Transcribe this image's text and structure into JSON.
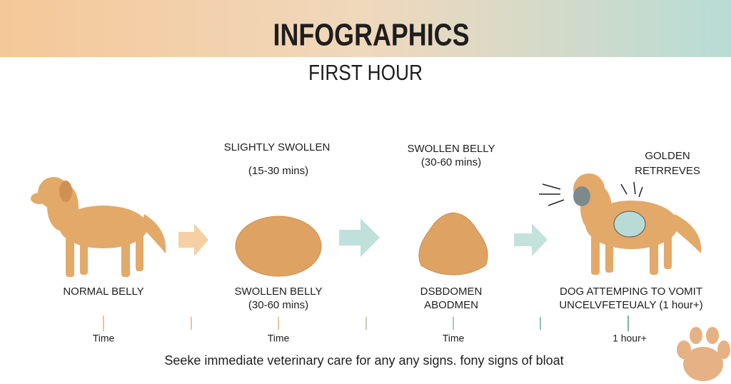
{
  "header": {
    "title": "INFOGRAPHICS",
    "subtitle": "FIRST HOUR"
  },
  "stages": [
    {
      "top": [],
      "label": [
        "NORMAL BELLY"
      ]
    },
    {
      "top": [
        "SLIGHTLY SWOLLEN",
        "(15-30 mins)"
      ],
      "label": [
        "SWOLLEN BELLY",
        "(30-60 mins)"
      ]
    },
    {
      "top": [
        "SWOLLEN BELLY",
        "(30-60 mins)"
      ],
      "label": [
        "DSBDOMEN",
        "ABODMEN"
      ]
    },
    {
      "top": [
        "GOLDEN",
        "RETRREVES"
      ],
      "label": [
        "DOG ATTEMPING TO VOMIT",
        "UNCELVFETEUALY (1 hour+)"
      ]
    }
  ],
  "timeline": [
    "Time",
    "Time",
    "Time",
    "1 hour+"
  ],
  "footer": "Seeke immediate veterinary care for any any signs. fony signs of bloat"
}
